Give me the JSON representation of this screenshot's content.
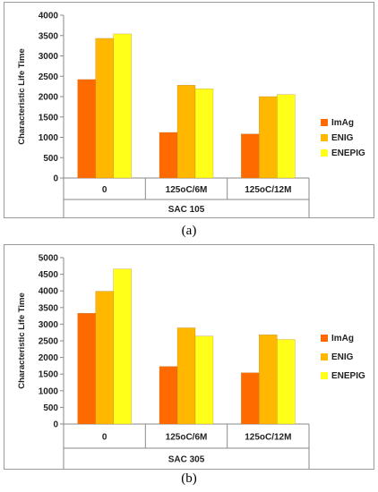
{
  "chart_data": [
    {
      "type": "bar",
      "categories": [
        "0",
        "125oC/6M",
        "125oC/12M"
      ],
      "group_label": "SAC 105",
      "ylabel": "Characteristic Life Time",
      "xlabel": "",
      "ylim": [
        0,
        4000
      ],
      "ytick_step": 500,
      "series": [
        {
          "name": "ImAg",
          "color": "#ff6a00",
          "values": [
            2420,
            1120,
            1080
          ]
        },
        {
          "name": "ENIG",
          "color": "#ffb700",
          "values": [
            3430,
            2280,
            2000
          ]
        },
        {
          "name": "ENEPIG",
          "color": "#ffff1a",
          "values": [
            3540,
            2190,
            2050
          ]
        }
      ],
      "legend": "right",
      "grid": false
    },
    {
      "type": "bar",
      "categories": [
        "0",
        "125oC/6M",
        "125oC/12M"
      ],
      "group_label": "SAC 305",
      "ylabel": "Characteristic Life Time",
      "xlabel": "",
      "ylim": [
        0,
        5000
      ],
      "ytick_step": 500,
      "series": [
        {
          "name": "ImAg",
          "color": "#ff6a00",
          "values": [
            3330,
            1730,
            1540
          ]
        },
        {
          "name": "ENIG",
          "color": "#ffb700",
          "values": [
            3990,
            2890,
            2680
          ]
        },
        {
          "name": "ENEPIG",
          "color": "#ffff1a",
          "values": [
            4660,
            2640,
            2540
          ]
        }
      ],
      "legend": "right",
      "grid": false
    }
  ],
  "captions": {
    "a": "(a)",
    "b": "(b)"
  }
}
